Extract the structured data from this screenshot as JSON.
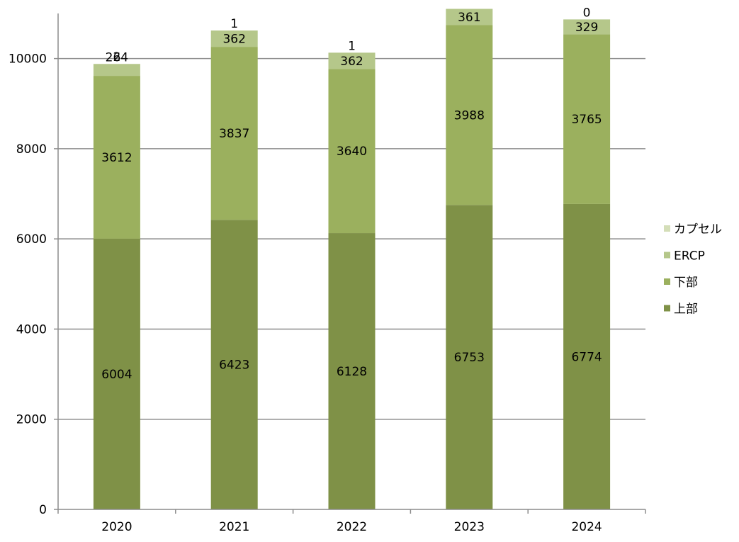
{
  "chart_data": {
    "type": "bar",
    "stacked": true,
    "categories": [
      "2020",
      "2021",
      "2022",
      "2023",
      "2024"
    ],
    "series": [
      {
        "name": "上部",
        "values": [
          6004,
          6423,
          6128,
          6753,
          6774
        ],
        "color": "#7f9147"
      },
      {
        "name": "下部",
        "values": [
          3612,
          3837,
          3640,
          3988,
          3765
        ],
        "color": "#9bb05e"
      },
      {
        "name": "ERCP",
        "values": [
          264,
          362,
          362,
          361,
          329
        ],
        "color": "#b5c78a"
      },
      {
        "name": "カプセル",
        "values": [
          2,
          1,
          1,
          null,
          0
        ],
        "color": "#d4deb8"
      }
    ],
    "data_labels": [
      [
        "6004",
        "6423",
        "6128",
        "6753",
        "6774"
      ],
      [
        "3612",
        "3837",
        "3640",
        "3988",
        "3765"
      ],
      [
        "264",
        "362",
        "362",
        "361",
        "329"
      ],
      [
        "2",
        "1",
        "1",
        "",
        "0"
      ]
    ],
    "ylim": [
      0,
      11000
    ],
    "y_ticks": [
      "0",
      "2000",
      "4000",
      "6000",
      "8000",
      "10000"
    ],
    "grid": true,
    "legend_position": "right",
    "legend_order": [
      "カプセル",
      "ERCP",
      "下部",
      "上部"
    ],
    "title": "",
    "xlabel": "",
    "ylabel": ""
  }
}
